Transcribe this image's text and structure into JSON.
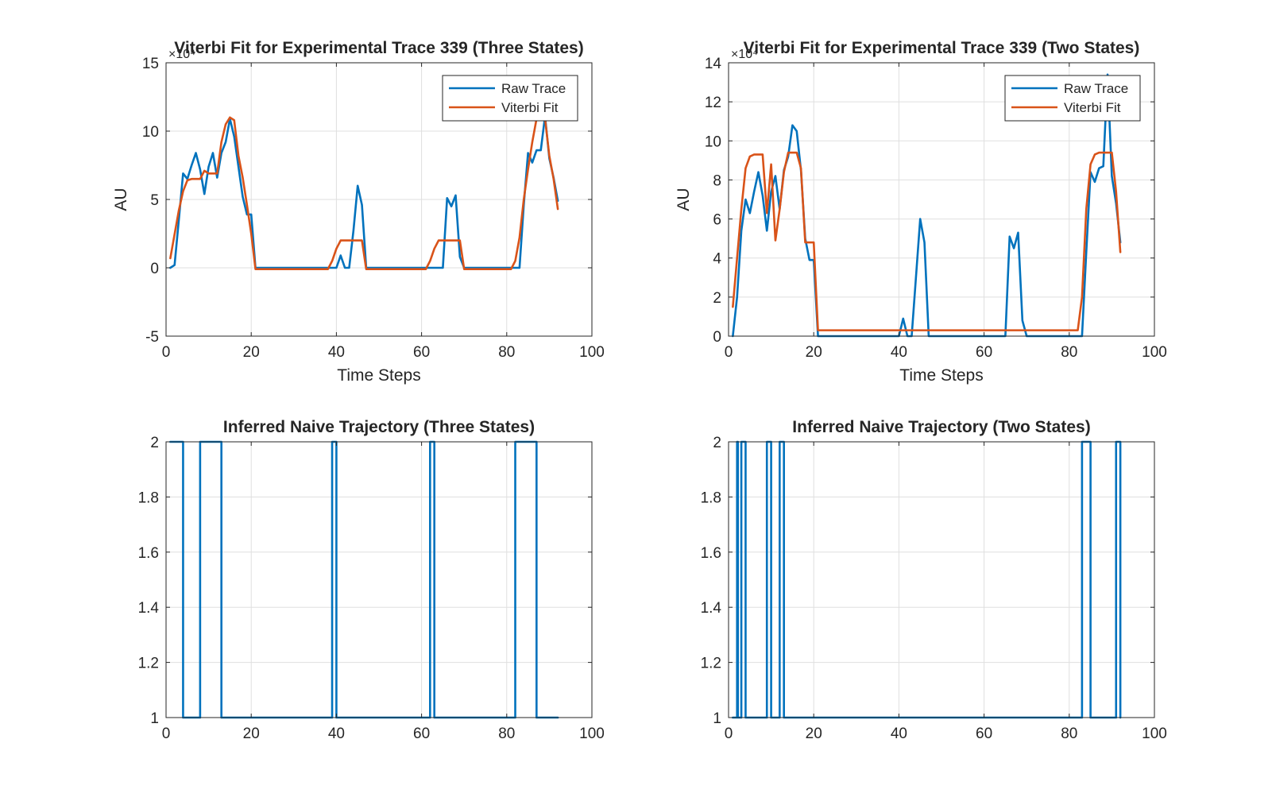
{
  "figure": {
    "colors": {
      "raw": "#0072BD",
      "fit": "#D95319",
      "axes": "#262626",
      "grid": "#dfdfdf",
      "background": "#ffffff"
    }
  },
  "chart_data": [
    {
      "type": "line",
      "title": "Viterbi Fit for Experimental Trace 339 (Three States)",
      "xlabel": "Time Steps",
      "ylabel": "AU",
      "y_exponent": "×10⁴",
      "xlim": [
        0,
        100
      ],
      "ylim": [
        -5,
        15
      ],
      "xticks": [
        0,
        20,
        40,
        60,
        80,
        100
      ],
      "yticks": [
        -5,
        0,
        5,
        10,
        15
      ],
      "grid": true,
      "legend_position": "top-right",
      "series": [
        {
          "name": "Raw Trace",
          "color": "#0072BD",
          "points": [
            [
              1,
              0
            ],
            [
              2,
              0.2
            ],
            [
              3,
              3.5
            ],
            [
              4,
              6.9
            ],
            [
              5,
              6.5
            ],
            [
              6,
              7.5
            ],
            [
              7,
              8.4
            ],
            [
              8,
              7.2
            ],
            [
              9,
              5.4
            ],
            [
              10,
              7.4
            ],
            [
              11,
              8.4
            ],
            [
              12,
              6.6
            ],
            [
              13,
              8.4
            ],
            [
              14,
              9.2
            ],
            [
              15,
              10.9
            ],
            [
              16,
              9.6
            ],
            [
              17,
              7.4
            ],
            [
              18,
              5.2
            ],
            [
              19,
              3.9
            ],
            [
              20,
              3.9
            ],
            [
              21,
              0
            ],
            [
              22,
              0
            ],
            [
              30,
              0
            ],
            [
              39,
              0
            ],
            [
              40,
              0
            ],
            [
              41,
              0.9
            ],
            [
              42,
              0
            ],
            [
              43,
              0
            ],
            [
              44,
              2.7
            ],
            [
              45,
              6.0
            ],
            [
              46,
              4.6
            ],
            [
              47,
              0
            ],
            [
              48,
              0
            ],
            [
              60,
              0
            ],
            [
              64,
              0
            ],
            [
              65,
              0
            ],
            [
              66,
              5.1
            ],
            [
              67,
              4.5
            ],
            [
              68,
              5.3
            ],
            [
              69,
              0.8
            ],
            [
              70,
              0
            ],
            [
              75,
              0
            ],
            [
              82,
              0
            ],
            [
              83,
              0
            ],
            [
              84,
              4.6
            ],
            [
              85,
              8.4
            ],
            [
              86,
              7.7
            ],
            [
              87,
              8.6
            ],
            [
              88,
              8.6
            ],
            [
              89,
              11.1
            ],
            [
              90,
              8.0
            ],
            [
              91,
              6.6
            ],
            [
              92,
              4.9
            ]
          ]
        },
        {
          "name": "Viterbi Fit",
          "color": "#D95319",
          "points": [
            [
              1,
              0.7
            ],
            [
              3,
              4.2
            ],
            [
              4,
              5.6
            ],
            [
              5,
              6.4
            ],
            [
              6,
              6.5
            ],
            [
              8,
              6.5
            ],
            [
              9,
              7.1
            ],
            [
              10,
              6.9
            ],
            [
              12,
              6.9
            ],
            [
              13,
              9.2
            ],
            [
              14,
              10.5
            ],
            [
              15,
              11.0
            ],
            [
              16,
              10.8
            ],
            [
              17,
              8.2
            ],
            [
              18,
              6.6
            ],
            [
              19,
              4.6
            ],
            [
              20,
              2.5
            ],
            [
              21,
              -0.1
            ],
            [
              25,
              -0.1
            ],
            [
              38,
              -0.1
            ],
            [
              39,
              0.5
            ],
            [
              40,
              1.4
            ],
            [
              41,
              2.0
            ],
            [
              46,
              2.0
            ],
            [
              47,
              -0.1
            ],
            [
              55,
              -0.1
            ],
            [
              61,
              -0.1
            ],
            [
              62,
              0.5
            ],
            [
              63,
              1.4
            ],
            [
              64,
              2.0
            ],
            [
              69,
              2.0
            ],
            [
              70,
              -0.1
            ],
            [
              80,
              -0.1
            ],
            [
              81,
              -0.1
            ],
            [
              82,
              0.5
            ],
            [
              83,
              2.2
            ],
            [
              84,
              5.0
            ],
            [
              85,
              7.2
            ],
            [
              86,
              9.2
            ],
            [
              87,
              10.9
            ],
            [
              88,
              11.0
            ],
            [
              89,
              10.9
            ],
            [
              90,
              8.2
            ],
            [
              91,
              6.5
            ],
            [
              92,
              4.3
            ]
          ]
        }
      ]
    },
    {
      "type": "line",
      "title": "Viterbi Fit for Experimental Trace  339 (Two States)",
      "xlabel": "Time Steps",
      "ylabel": "AU",
      "y_exponent": "×10⁴",
      "xlim": [
        0,
        100
      ],
      "ylim": [
        0,
        14
      ],
      "xticks": [
        0,
        20,
        40,
        60,
        80,
        100
      ],
      "yticks": [
        0,
        2,
        4,
        6,
        8,
        10,
        12,
        14
      ],
      "grid": true,
      "legend_position": "top-right",
      "series": [
        {
          "name": "Raw Trace",
          "color": "#0072BD",
          "points": [
            [
              1,
              0
            ],
            [
              2,
              2.0
            ],
            [
              3,
              5.4
            ],
            [
              4,
              7.0
            ],
            [
              5,
              6.3
            ],
            [
              6,
              7.4
            ],
            [
              7,
              8.4
            ],
            [
              8,
              7.2
            ],
            [
              9,
              5.4
            ],
            [
              10,
              7.4
            ],
            [
              11,
              8.2
            ],
            [
              12,
              6.5
            ],
            [
              13,
              8.5
            ],
            [
              14,
              9.2
            ],
            [
              15,
              10.8
            ],
            [
              16,
              10.5
            ],
            [
              17,
              8.5
            ],
            [
              18,
              5.0
            ],
            [
              19,
              3.9
            ],
            [
              20,
              3.9
            ],
            [
              21,
              0
            ],
            [
              22,
              0
            ],
            [
              30,
              0
            ],
            [
              40,
              0
            ],
            [
              41,
              0.9
            ],
            [
              42,
              0
            ],
            [
              43,
              0
            ],
            [
              44,
              3.0
            ],
            [
              45,
              6.0
            ],
            [
              46,
              4.8
            ],
            [
              47,
              0
            ],
            [
              48,
              0
            ],
            [
              60,
              0
            ],
            [
              65,
              0
            ],
            [
              66,
              5.1
            ],
            [
              67,
              4.5
            ],
            [
              68,
              5.3
            ],
            [
              69,
              0.8
            ],
            [
              70,
              0
            ],
            [
              75,
              0
            ],
            [
              82,
              0
            ],
            [
              83,
              0
            ],
            [
              84,
              4.3
            ],
            [
              85,
              8.4
            ],
            [
              86,
              7.9
            ],
            [
              87,
              8.6
            ],
            [
              88,
              8.7
            ],
            [
              89,
              13.4
            ],
            [
              90,
              8.2
            ],
            [
              91,
              6.8
            ],
            [
              92,
              4.8
            ]
          ]
        },
        {
          "name": "Viterbi Fit",
          "color": "#D95319",
          "points": [
            [
              1,
              1.5
            ],
            [
              2,
              4.0
            ],
            [
              3,
              6.5
            ],
            [
              4,
              8.6
            ],
            [
              5,
              9.2
            ],
            [
              6,
              9.3
            ],
            [
              7,
              9.3
            ],
            [
              8,
              9.3
            ],
            [
              9,
              6.3
            ],
            [
              10,
              8.8
            ],
            [
              11,
              4.9
            ],
            [
              12,
              6.5
            ],
            [
              13,
              8.4
            ],
            [
              14,
              9.4
            ],
            [
              15,
              9.4
            ],
            [
              16,
              9.4
            ],
            [
              17,
              8.6
            ],
            [
              18,
              4.8
            ],
            [
              19,
              4.8
            ],
            [
              20,
              4.8
            ],
            [
              21,
              0.3
            ],
            [
              30,
              0.3
            ],
            [
              50,
              0.3
            ],
            [
              70,
              0.3
            ],
            [
              80,
              0.3
            ],
            [
              82,
              0.3
            ],
            [
              83,
              2.0
            ],
            [
              84,
              6.5
            ],
            [
              85,
              8.8
            ],
            [
              86,
              9.3
            ],
            [
              87,
              9.4
            ],
            [
              88,
              9.4
            ],
            [
              89,
              9.4
            ],
            [
              90,
              9.4
            ],
            [
              91,
              7.4
            ],
            [
              92,
              4.3
            ]
          ]
        }
      ]
    },
    {
      "type": "line",
      "title": "Inferred Naive Trajectory (Three States)",
      "xlabel": "",
      "ylabel": "",
      "xlim": [
        0,
        100
      ],
      "ylim": [
        1,
        2
      ],
      "xticks": [
        0,
        20,
        40,
        60,
        80,
        100
      ],
      "yticks": [
        1,
        1.2,
        1.4,
        1.6,
        1.8,
        2
      ],
      "grid": true,
      "series": [
        {
          "color": "#0072BD",
          "step": true,
          "points": [
            [
              1,
              2
            ],
            [
              4,
              2
            ],
            [
              4,
              1
            ],
            [
              8,
              1
            ],
            [
              8,
              2
            ],
            [
              13,
              2
            ],
            [
              13,
              1
            ],
            [
              39,
              1
            ],
            [
              39,
              2
            ],
            [
              40,
              2
            ],
            [
              40,
              1
            ],
            [
              62,
              1
            ],
            [
              62,
              2
            ],
            [
              63,
              2
            ],
            [
              63,
              1
            ],
            [
              82,
              1
            ],
            [
              82,
              2
            ],
            [
              87,
              2
            ],
            [
              87,
              1
            ],
            [
              92,
              1
            ]
          ]
        }
      ]
    },
    {
      "type": "line",
      "title": "Inferred Naive Trajectory (Two States)",
      "xlabel": "",
      "ylabel": "",
      "xlim": [
        0,
        100
      ],
      "ylim": [
        1,
        2
      ],
      "xticks": [
        0,
        20,
        40,
        60,
        80,
        100
      ],
      "yticks": [
        1,
        1.2,
        1.4,
        1.6,
        1.8,
        2
      ],
      "grid": true,
      "series": [
        {
          "color": "#0072BD",
          "step": true,
          "points": [
            [
              1,
              1
            ],
            [
              2,
              1
            ],
            [
              2,
              2
            ],
            [
              2.2,
              2
            ],
            [
              2.2,
              1
            ],
            [
              3,
              1
            ],
            [
              3,
              2
            ],
            [
              4,
              2
            ],
            [
              4,
              1
            ],
            [
              9,
              1
            ],
            [
              9,
              2
            ],
            [
              10,
              2
            ],
            [
              10,
              1
            ],
            [
              12,
              1
            ],
            [
              12,
              2
            ],
            [
              13,
              2
            ],
            [
              13,
              1
            ],
            [
              83,
              1
            ],
            [
              83,
              2
            ],
            [
              85,
              2
            ],
            [
              85,
              1
            ],
            [
              91,
              1
            ],
            [
              91,
              2
            ],
            [
              92,
              2
            ],
            [
              92,
              1
            ]
          ]
        }
      ]
    }
  ]
}
